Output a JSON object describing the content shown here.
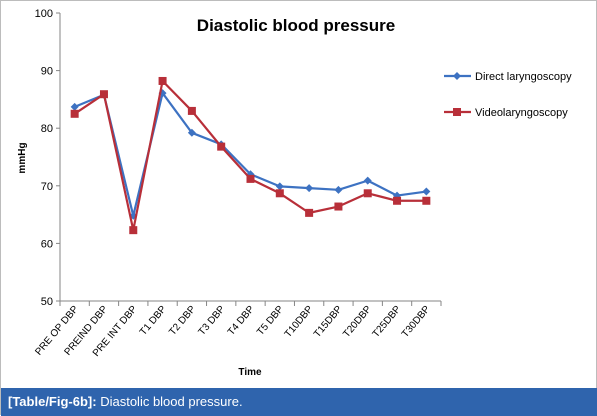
{
  "chart_data": {
    "type": "line",
    "title": "Diastolic blood pressure",
    "xlabel": "Time",
    "ylabel": "mmHg",
    "ylim": [
      50,
      100
    ],
    "yticks": [
      50,
      60,
      70,
      80,
      90,
      100
    ],
    "categories": [
      "PRE OP DBP",
      "PREIND DBP",
      "PRE INT DBP",
      "T1 DBP",
      "T2 DBP",
      "T3 DBP",
      "T4 DBP",
      "T5 DBP",
      "T10DBP",
      "T15DBP",
      "T20DBP",
      "T25DBP",
      "T30DBP"
    ],
    "series": [
      {
        "name": "Direct laryngoscopy",
        "color": "#3d72c2",
        "marker": "diamond",
        "values": [
          83.7,
          85.8,
          64.8,
          86.1,
          79.2,
          77.2,
          72.0,
          69.9,
          69.6,
          69.3,
          70.9,
          68.3,
          69.0
        ]
      },
      {
        "name": "Videolaryngoscopy",
        "color": "#b82f39",
        "marker": "square",
        "values": [
          82.5,
          85.9,
          62.3,
          88.2,
          83.0,
          76.8,
          71.2,
          68.7,
          65.3,
          66.4,
          68.7,
          67.4,
          67.4
        ]
      }
    ],
    "grid": false,
    "legend_position": "right"
  },
  "caption": {
    "ref": "[Table/Fig-6b]:",
    "text": " Diastolic blood pressure."
  }
}
